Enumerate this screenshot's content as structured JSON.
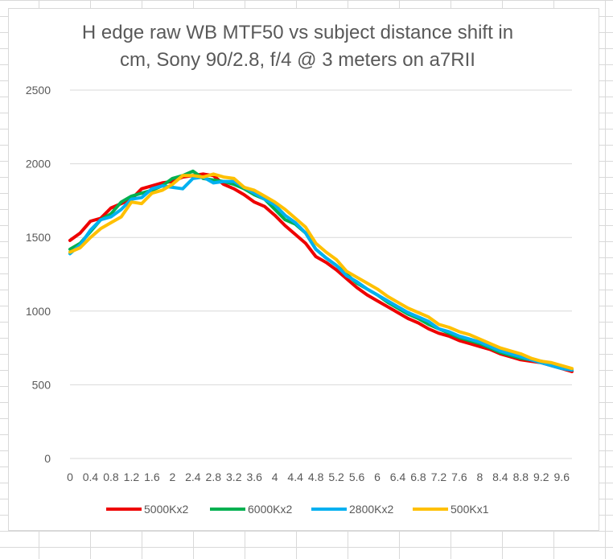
{
  "chart_data": {
    "type": "line",
    "title_lines": [
      "H edge raw WB MTF50 vs subject distance shift in",
      "cm, Sony 90/2.8, f/4 @ 3  meters on a7RII"
    ],
    "xlabel": "",
    "ylabel": "",
    "ylim": [
      0,
      2500
    ],
    "yticks": [
      0,
      500,
      1000,
      1500,
      2000,
      2500
    ],
    "grid": true,
    "legend_position": "bottom",
    "x": [
      0,
      0.2,
      0.4,
      0.6,
      0.8,
      1.0,
      1.2,
      1.4,
      1.6,
      1.8,
      2.0,
      2.2,
      2.4,
      2.6,
      2.8,
      3.0,
      3.2,
      3.4,
      3.6,
      3.8,
      4.0,
      4.2,
      4.4,
      4.6,
      4.8,
      5.0,
      5.2,
      5.4,
      5.6,
      5.8,
      6.0,
      6.2,
      6.4,
      6.6,
      6.8,
      7.0,
      7.2,
      7.4,
      7.6,
      7.8,
      8.0,
      8.2,
      8.4,
      8.6,
      8.8,
      9.0,
      9.2,
      9.4,
      9.6,
      9.8
    ],
    "xtick_labels": [
      "0",
      "0.4",
      "0.8",
      "1.2",
      "1.6",
      "2",
      "2.4",
      "2.8",
      "3.2",
      "3.6",
      "4",
      "4.4",
      "4.8",
      "5.2",
      "5.6",
      "6",
      "6.4",
      "6.8",
      "7.2",
      "7.6",
      "8",
      "8.4",
      "8.8",
      "9.2",
      "9.6"
    ],
    "series": [
      {
        "name": "5000Kx2",
        "color": "#ee0000",
        "values": [
          1480,
          1530,
          1610,
          1630,
          1700,
          1730,
          1760,
          1830,
          1850,
          1870,
          1880,
          1910,
          1920,
          1930,
          1920,
          1860,
          1830,
          1790,
          1740,
          1710,
          1650,
          1580,
          1520,
          1460,
          1370,
          1330,
          1280,
          1220,
          1160,
          1110,
          1070,
          1030,
          990,
          950,
          920,
          880,
          850,
          830,
          800,
          780,
          760,
          740,
          710,
          690,
          670,
          660,
          650,
          630,
          610,
          590
        ]
      },
      {
        "name": "6000Kx2",
        "color": "#00b050",
        "values": [
          1420,
          1460,
          1540,
          1620,
          1660,
          1740,
          1780,
          1800,
          1820,
          1850,
          1900,
          1920,
          1950,
          1900,
          1890,
          1880,
          1860,
          1830,
          1790,
          1760,
          1690,
          1620,
          1590,
          1530,
          1420,
          1360,
          1310,
          1250,
          1190,
          1150,
          1110,
          1060,
          1020,
          980,
          950,
          910,
          880,
          850,
          820,
          800,
          780,
          750,
          720,
          700,
          680,
          670,
          660,
          640,
          620,
          600
        ]
      },
      {
        "name": "2800Kx2",
        "color": "#00b0f0",
        "values": [
          1390,
          1450,
          1550,
          1620,
          1640,
          1690,
          1760,
          1770,
          1830,
          1850,
          1840,
          1830,
          1900,
          1910,
          1870,
          1880,
          1880,
          1840,
          1800,
          1760,
          1720,
          1650,
          1600,
          1530,
          1420,
          1360,
          1310,
          1240,
          1200,
          1150,
          1110,
          1070,
          1030,
          990,
          960,
          930,
          880,
          860,
          830,
          810,
          790,
          760,
          730,
          710,
          690,
          670,
          650,
          630,
          610,
          600
        ]
      },
      {
        "name": "500Kx1",
        "color": "#ffc000",
        "values": [
          1400,
          1430,
          1500,
          1560,
          1600,
          1640,
          1740,
          1730,
          1800,
          1820,
          1860,
          1920,
          1920,
          1910,
          1930,
          1910,
          1900,
          1840,
          1820,
          1780,
          1740,
          1690,
          1630,
          1570,
          1460,
          1400,
          1350,
          1270,
          1230,
          1190,
          1150,
          1100,
          1060,
          1020,
          990,
          960,
          910,
          890,
          860,
          840,
          810,
          780,
          750,
          730,
          710,
          680,
          660,
          650,
          630,
          610
        ]
      }
    ]
  }
}
